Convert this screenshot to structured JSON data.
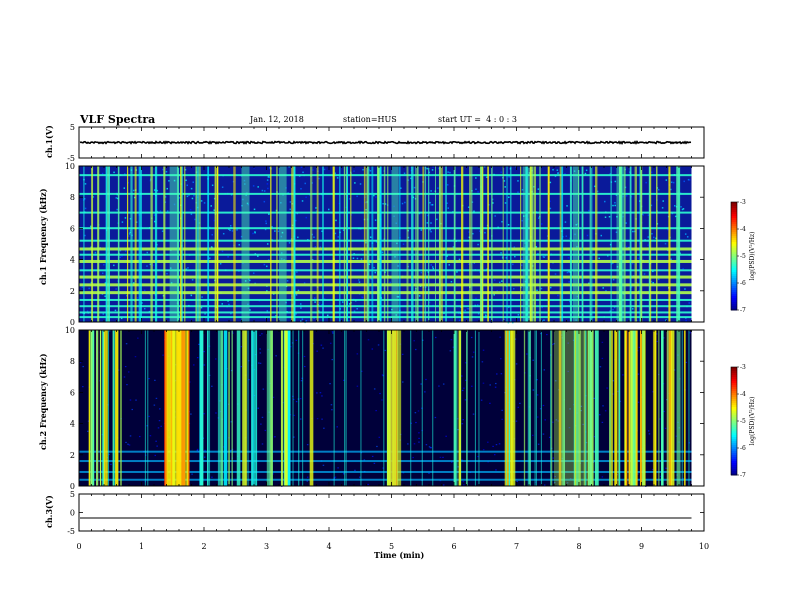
{
  "header": {
    "title": "VLF Spectra",
    "date": "Jan. 12, 2018",
    "station": "station=HUS",
    "start": "start UT =  4 : 0 : 3"
  },
  "chart_data": [
    {
      "type": "line",
      "panel": "ch1-waveform",
      "ylabel": "ch.1(V)",
      "xlim": [
        0,
        10
      ],
      "ylim": [
        -5,
        5
      ],
      "yticks": [
        "5",
        "-5"
      ],
      "series": [
        {
          "level": 0,
          "noise_amplitude": 0.3
        }
      ]
    },
    {
      "type": "heatmap",
      "panel": "ch1-spectrogram",
      "ylabel": "ch.1 Frequency (kHz)",
      "xlim": [
        0,
        10
      ],
      "ylim": [
        0,
        10
      ],
      "yticks": [
        "0",
        "2",
        "4",
        "6",
        "8",
        "10"
      ],
      "data_xrange": [
        0,
        9.8
      ],
      "colorbar": {
        "label": "log(PSD)(V²/Hz)",
        "range": [
          -7,
          -3
        ],
        "ticks": [
          "-3",
          "-4",
          "-5",
          "-6",
          "-7"
        ]
      }
    },
    {
      "type": "heatmap",
      "panel": "ch2-spectrogram",
      "ylabel": "ch.2 Frequency (kHz)",
      "xlim": [
        0,
        10
      ],
      "ylim": [
        0,
        10
      ],
      "yticks": [
        "0",
        "2",
        "4",
        "6",
        "8",
        "10"
      ],
      "data_xrange": [
        0,
        9.8
      ],
      "colorbar": {
        "label": "log(PSD)(V²/Hz)",
        "range": [
          -7,
          -3
        ],
        "ticks": [
          "-3",
          "-4",
          "-5",
          "-6",
          "-7"
        ]
      }
    },
    {
      "type": "line",
      "panel": "ch3-waveform",
      "ylabel": "ch.3(V)",
      "xlim": [
        0,
        10
      ],
      "ylim": [
        -5,
        5
      ],
      "yticks": [
        "5",
        "0",
        "-5"
      ],
      "series": [
        {
          "level": -1.5
        }
      ]
    }
  ],
  "xaxis": {
    "label": "Time (min)",
    "ticks": [
      "0",
      "1",
      "2",
      "3",
      "4",
      "5",
      "6",
      "7",
      "8",
      "9",
      "10"
    ]
  }
}
